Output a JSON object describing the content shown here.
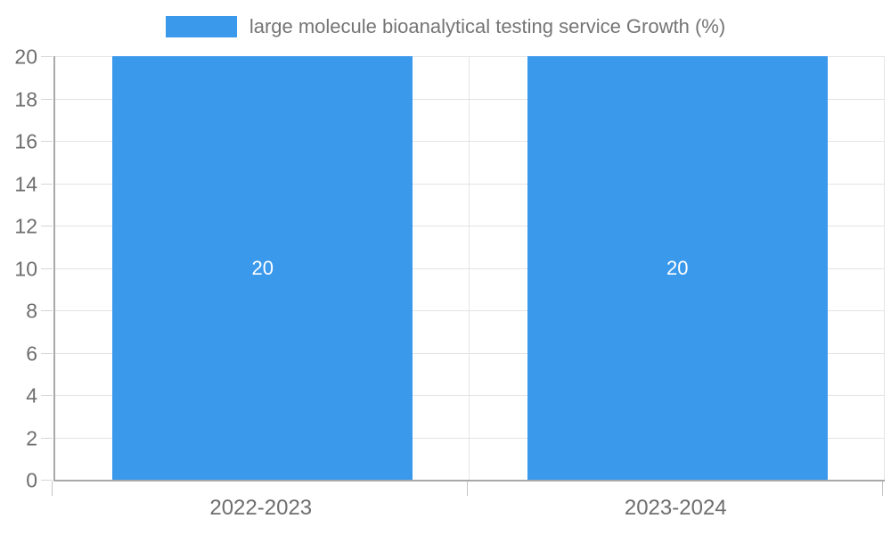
{
  "legend": {
    "label": "large molecule bioanalytical testing service Growth (%)"
  },
  "colors": {
    "bar": "#3b99ec",
    "bar_label": "#ffffff",
    "axis_text": "#6e6e6e",
    "axis_line": "#a8a8a8",
    "grid": "#e4e4e4",
    "background": "#ffffff"
  },
  "chart_data": {
    "type": "bar",
    "categories": [
      "2022-2023",
      "2023-2024"
    ],
    "series": [
      {
        "name": "large molecule bioanalytical testing service Growth (%)",
        "values": [
          20,
          20
        ]
      }
    ],
    "data_labels": [
      "20",
      "20"
    ],
    "title": "",
    "xlabel": "",
    "ylabel": "",
    "ylim": [
      0,
      20
    ],
    "ytick_step": 2,
    "yticks": [
      0,
      2,
      4,
      6,
      8,
      10,
      12,
      14,
      16,
      18,
      20
    ],
    "grid": true,
    "legend_position": "top"
  }
}
